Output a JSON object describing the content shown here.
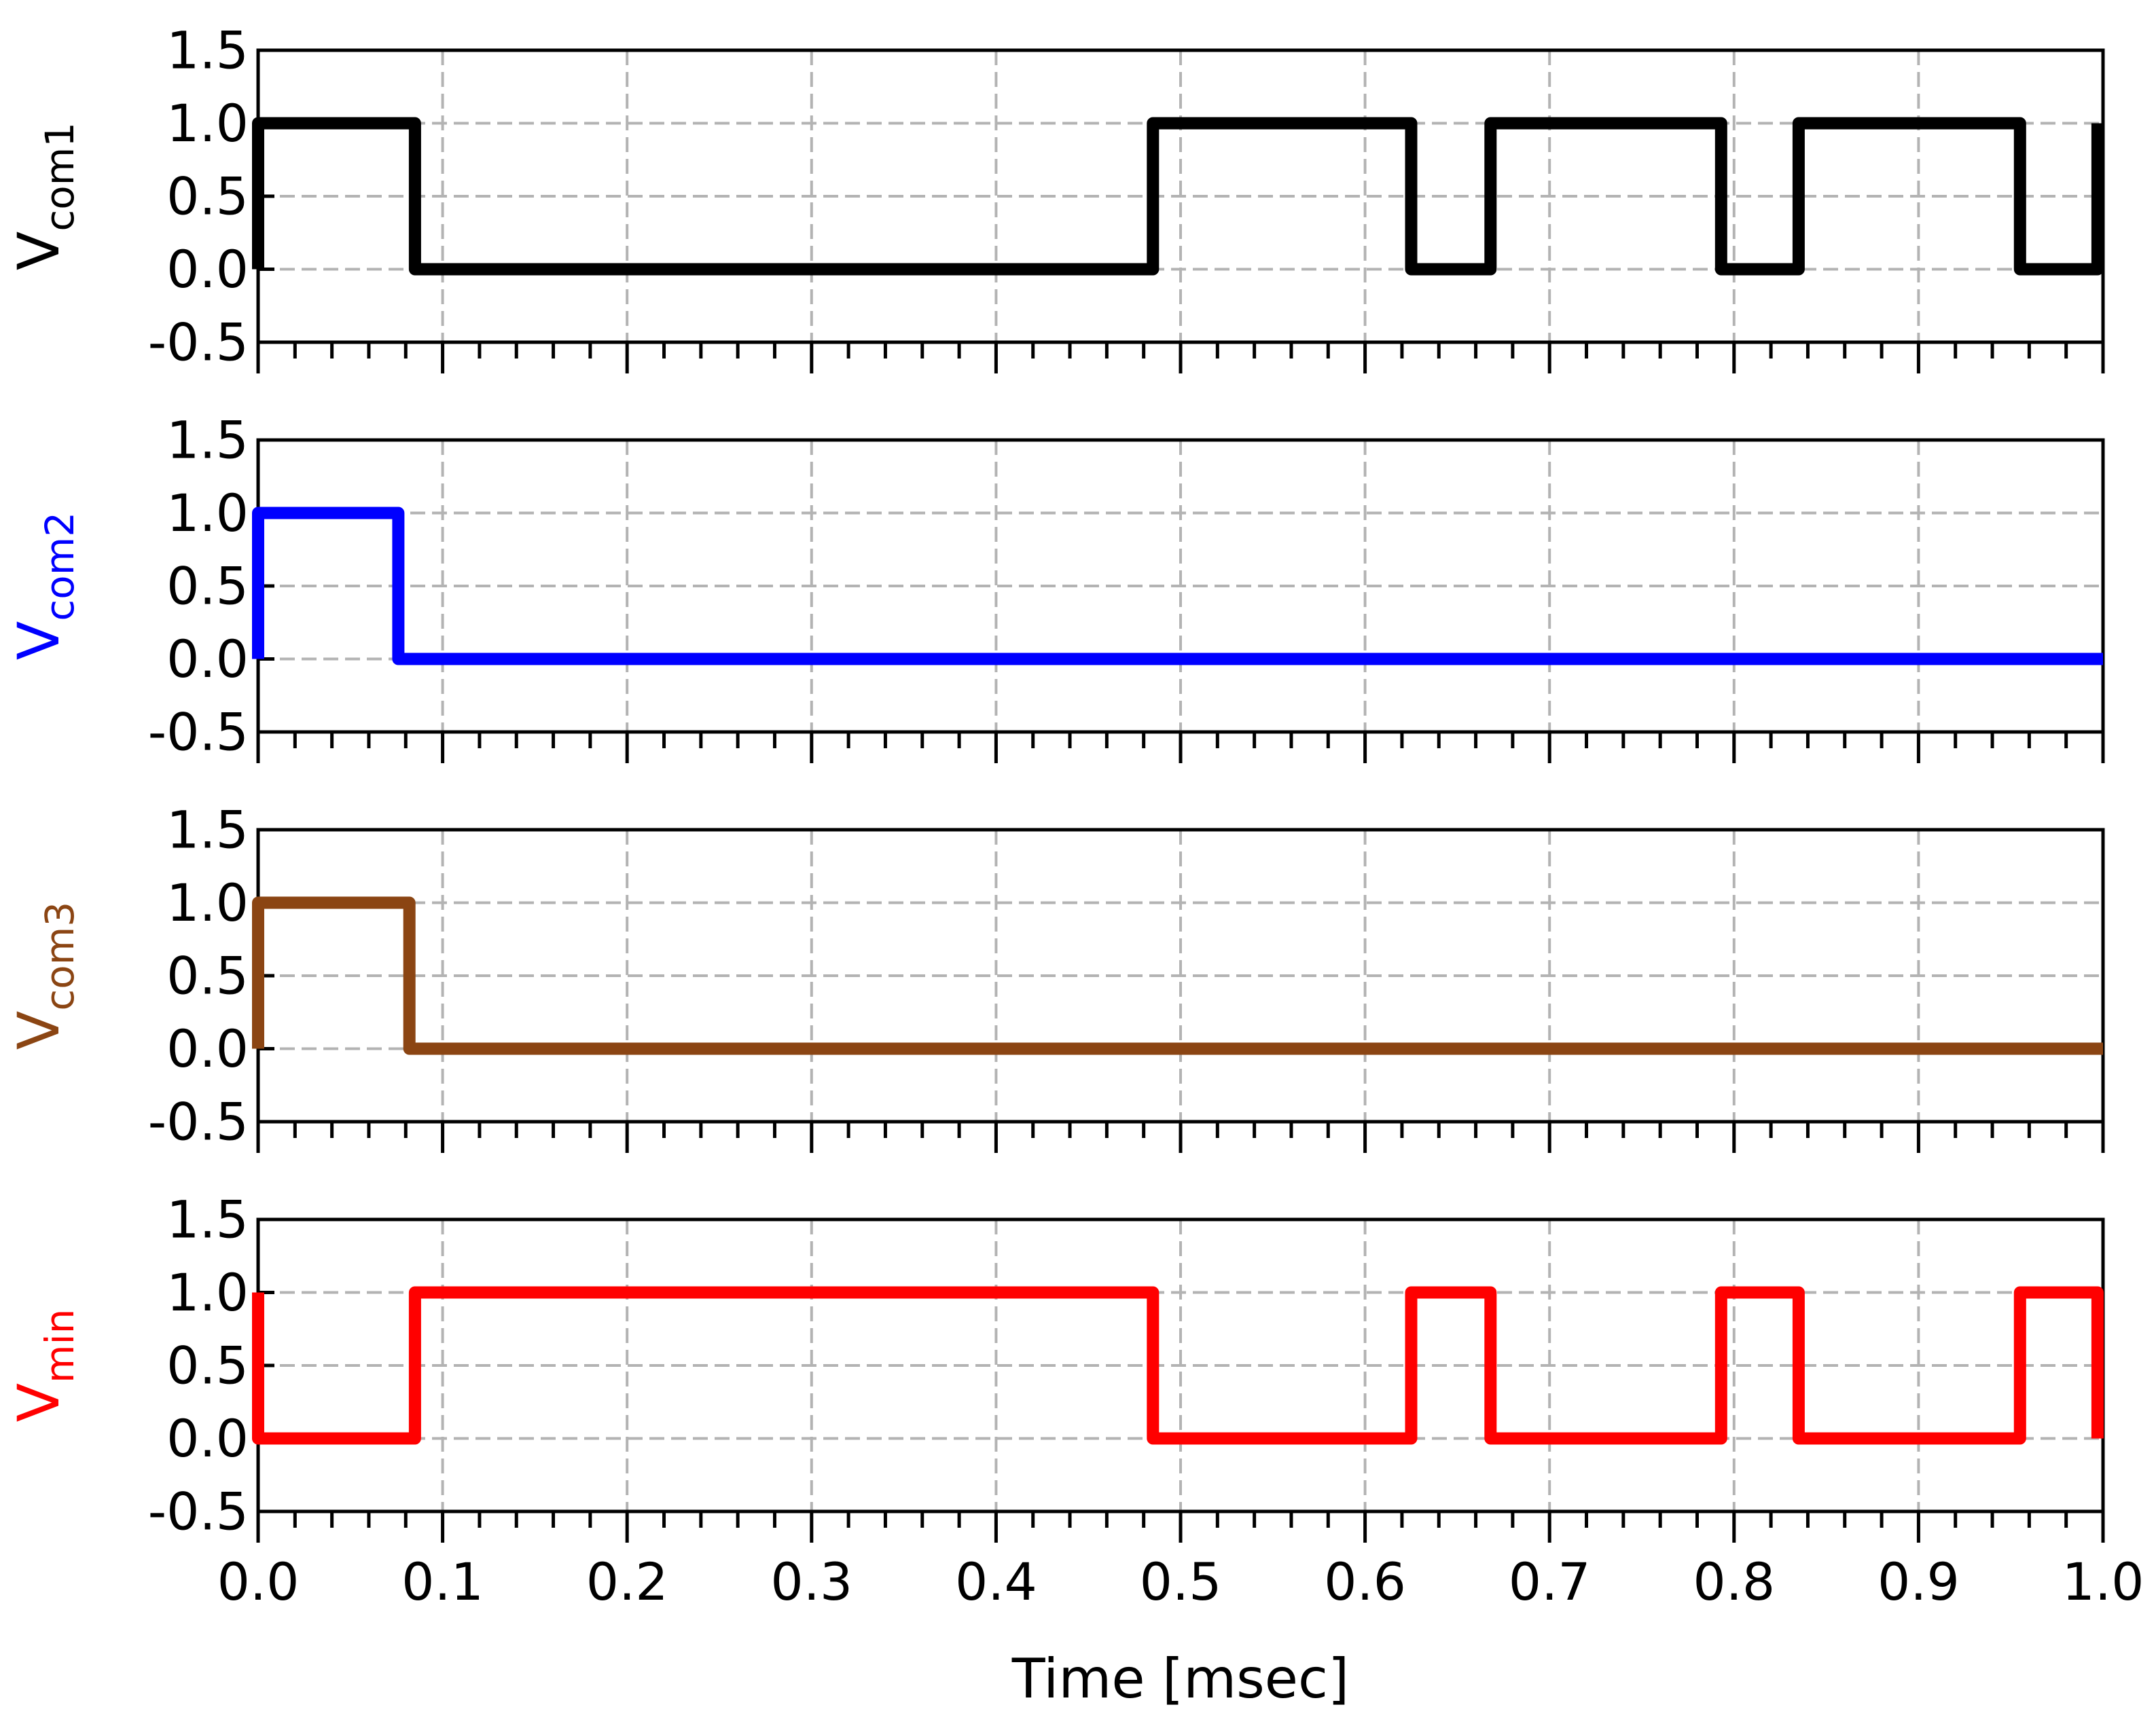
{
  "chart_data": [
    {
      "type": "line",
      "ylabel_main": "V",
      "ylabel_sub": "com1",
      "color": "#000000",
      "xlim": [
        0,
        1.0
      ],
      "ylim": [
        -0.5,
        1.5
      ],
      "yticks": [
        "-0.5",
        "0.0",
        "0.5",
        "1.0",
        "1.5"
      ],
      "grid": true,
      "series": [
        {
          "x": [
            0.0,
            0.0,
            0.085,
            0.085,
            0.485,
            0.485,
            0.625,
            0.625,
            0.668,
            0.668,
            0.793,
            0.793,
            0.835,
            0.835,
            0.955,
            0.955,
            0.997,
            0.997
          ],
          "y": [
            0.0,
            1.0,
            1.0,
            0.0,
            0.0,
            1.0,
            1.0,
            0.0,
            0.0,
            1.0,
            1.0,
            0.0,
            0.0,
            1.0,
            1.0,
            0.0,
            0.0,
            1.0
          ]
        }
      ]
    },
    {
      "type": "line",
      "ylabel_main": "V",
      "ylabel_sub": "com2",
      "color": "#0000ff",
      "xlim": [
        0,
        1.0
      ],
      "ylim": [
        -0.5,
        1.5
      ],
      "yticks": [
        "-0.5",
        "0.0",
        "0.5",
        "1.0",
        "1.5"
      ],
      "grid": true,
      "series": [
        {
          "x": [
            0.0,
            0.0,
            0.076,
            0.076,
            1.0
          ],
          "y": [
            0.0,
            1.0,
            1.0,
            0.0,
            0.0
          ]
        }
      ]
    },
    {
      "type": "line",
      "ylabel_main": "V",
      "ylabel_sub": "com3",
      "color": "#8b4513",
      "xlim": [
        0,
        1.0
      ],
      "ylim": [
        -0.5,
        1.5
      ],
      "yticks": [
        "-0.5",
        "0.0",
        "0.5",
        "1.0",
        "1.5"
      ],
      "grid": true,
      "series": [
        {
          "x": [
            0.0,
            0.0,
            0.082,
            0.082,
            1.0
          ],
          "y": [
            0.0,
            1.0,
            1.0,
            0.0,
            0.0
          ]
        }
      ]
    },
    {
      "type": "line",
      "ylabel_main": "V",
      "ylabel_sub": "min",
      "color": "#ff0000",
      "xlim": [
        0,
        1.0
      ],
      "ylim": [
        -0.5,
        1.5
      ],
      "yticks": [
        "-0.5",
        "0.0",
        "0.5",
        "1.0",
        "1.5"
      ],
      "grid": true,
      "series": [
        {
          "x": [
            0.0,
            0.0,
            0.0,
            0.085,
            0.085,
            0.485,
            0.485,
            0.625,
            0.625,
            0.668,
            0.668,
            0.793,
            0.793,
            0.835,
            0.835,
            0.955,
            0.955,
            0.997,
            0.997
          ],
          "y": [
            1.0,
            1.0,
            0.0,
            0.0,
            1.0,
            1.0,
            0.0,
            0.0,
            1.0,
            1.0,
            0.0,
            0.0,
            1.0,
            1.0,
            0.0,
            0.0,
            1.0,
            1.0,
            0.0
          ]
        }
      ]
    }
  ],
  "xaxis": {
    "label": "Time [msec]",
    "ticks": [
      "0.0",
      "0.1",
      "0.2",
      "0.3",
      "0.4",
      "0.5",
      "0.6",
      "0.7",
      "0.8",
      "0.9",
      "1.0"
    ]
  }
}
